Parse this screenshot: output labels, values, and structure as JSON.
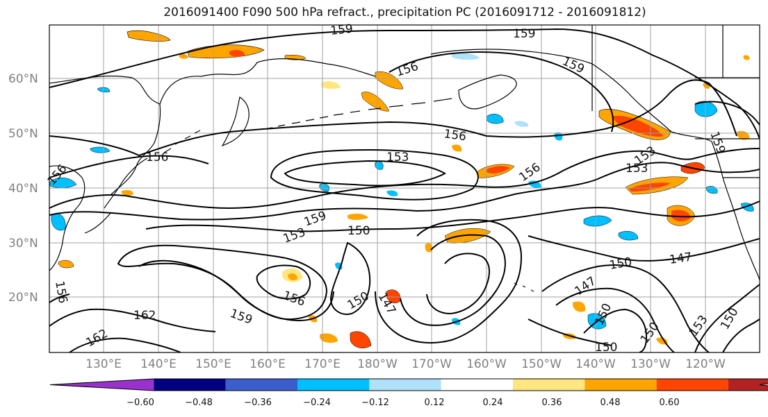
{
  "title": "2016091400 F090 500 hPa refract., precipitation PC (2016091712 - 2016091812)",
  "map": {
    "lat_labels": [
      "60°N",
      "50°N",
      "40°N",
      "30°N",
      "20°N"
    ],
    "lon_labels": [
      "130°E",
      "140°E",
      "150°E",
      "160°E",
      "170°E",
      "180°W",
      "170°W",
      "160°W",
      "150°W",
      "140°W",
      "130°W",
      "120°W"
    ],
    "contour_labels": [
      "159",
      "159",
      "156",
      "159",
      "156",
      "156",
      "153",
      "156",
      "153",
      "159",
      "156",
      "153",
      "159",
      "150",
      "153",
      "150",
      "147",
      "156",
      "150",
      "147",
      "147",
      "159",
      "162",
      "150",
      "153",
      "150",
      "162",
      "156",
      "150",
      "150"
    ],
    "colors": {
      "contour": "#000000",
      "coast": "#000000",
      "grid": "#a0a0a0",
      "tick_labels": "#808080"
    }
  },
  "colorbar": {
    "ticks": [
      "−0.60",
      "−0.48",
      "−0.36",
      "−0.24",
      "−0.12",
      "0.12",
      "0.24",
      "0.36",
      "0.48",
      "0.60"
    ],
    "bins": [
      {
        "label": "< −0.60",
        "color": "#9932cc"
      },
      {
        "label": "−0.60 – −0.48",
        "color": "#000080"
      },
      {
        "label": "−0.48 – −0.36",
        "color": "#3a5fcd"
      },
      {
        "label": "−0.36 – −0.24",
        "color": "#00bfff"
      },
      {
        "label": "−0.24 – −0.12",
        "color": "#afe1fa"
      },
      {
        "label": "−0.12 – 0.12",
        "color": "#ffffff"
      },
      {
        "label": "0.12 – 0.24",
        "color": "#ffe680"
      },
      {
        "label": "0.24 – 0.36",
        "color": "#ffa500"
      },
      {
        "label": "0.36 – 0.48",
        "color": "#ff4500"
      },
      {
        "label": "0.48 – 0.60",
        "color": "#b22222"
      },
      {
        "label": "> 0.60",
        "color": "#ff88aa"
      }
    ]
  }
}
